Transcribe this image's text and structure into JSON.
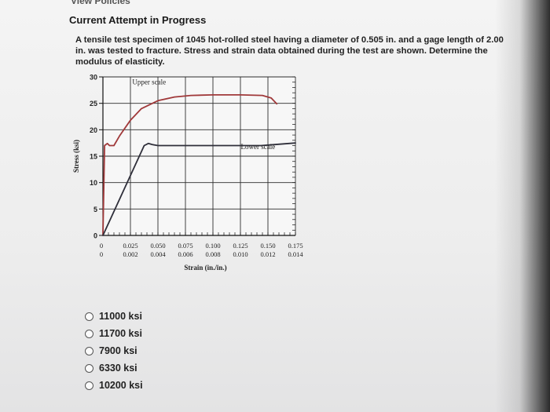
{
  "header": {
    "policies_link": "View Policies",
    "attempt_status": "Current Attempt in Progress"
  },
  "question": {
    "text": "A tensile test specimen of 1045 hot-rolled steel having a diameter of 0.505 in. and a gage length of 2.00 in. was tested to fracture. Stress and strain data obtained during the test are shown. Determine the modulus of elasticity."
  },
  "chart_data": {
    "type": "line",
    "ylabel": "Stress (ksi)",
    "xlabel": "Strain (in./in.)",
    "ylim": [
      0,
      30
    ],
    "y_ticks": [
      "0",
      "5",
      "10",
      "15",
      "20",
      "25",
      "30"
    ],
    "upper_x_ticks": [
      "0",
      "0.025",
      "0.050",
      "0.075",
      "0.100",
      "0.125",
      "0.150",
      "0.175"
    ],
    "lower_x_ticks": [
      "0",
      "0.002",
      "0.004",
      "0.006",
      "0.008",
      "0.010",
      "0.012",
      "0.014"
    ],
    "upper_scale_xlim": [
      0,
      0.175
    ],
    "lower_scale_xlim": [
      0,
      0.014
    ],
    "grid": true,
    "series": [
      {
        "name": "Upper scale",
        "color": "#a0393a",
        "x": [
          0,
          0.0015,
          0.004,
          0.006,
          0.01,
          0.015,
          0.025,
          0.035,
          0.05,
          0.065,
          0.08,
          0.1,
          0.125,
          0.145,
          0.153,
          0.158
        ],
        "y": [
          0,
          17.0,
          17.4,
          17.0,
          17.0,
          18.8,
          21.8,
          24.0,
          25.5,
          26.2,
          26.5,
          26.6,
          26.6,
          26.5,
          26.0,
          24.9
        ]
      },
      {
        "name": "Lower scale",
        "color": "#2f2f3a",
        "x": [
          0,
          0.003,
          0.0033,
          0.0036,
          0.004,
          0.006,
          0.008,
          0.01,
          0.0115,
          0.0125,
          0.014
        ],
        "y": [
          0,
          17.0,
          17.4,
          17.2,
          17.0,
          17.0,
          17.0,
          17.0,
          17.0,
          17.2,
          17.5
        ]
      }
    ]
  },
  "answers": {
    "options": [
      "11000 ksi",
      "11700 ksi",
      "7900 ksi",
      "6330 ksi",
      "10200 ksi"
    ]
  }
}
